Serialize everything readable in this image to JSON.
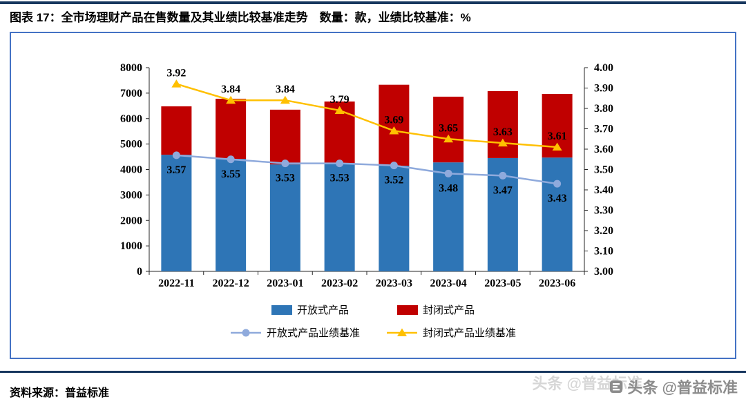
{
  "figure": {
    "caption": "图表 17：全市场理财产品在售数量及其业绩比较基准走势　数量：款，业绩比较基准：%"
  },
  "footer": {
    "source": "资料来源：普益标准",
    "watermark": "头条 @普益标准"
  },
  "colors": {
    "divider": "#17375E",
    "frame_border": "#4472C4",
    "axis": "#262626",
    "watermark": "#8C8C8C"
  },
  "chart_data": {
    "type": "bar",
    "subtype": "stacked-bars-with-secondary-axis-lines",
    "stacked": true,
    "grid": false,
    "legend_position": "bottom",
    "categories": [
      "2022-11",
      "2022-12",
      "2023-01",
      "2023-02",
      "2023-03",
      "2023-04",
      "2023-05",
      "2023-06"
    ],
    "bar_series": [
      {
        "name": "开放式产品",
        "axis": "left",
        "color": "#2E75B6",
        "values": [
          4580,
          4420,
          4200,
          4250,
          4150,
          4280,
          4450,
          4470
        ]
      },
      {
        "name": "封闭式产品",
        "axis": "left",
        "color": "#C00000",
        "values": [
          1900,
          2360,
          2150,
          2420,
          3180,
          2580,
          2630,
          2500
        ]
      }
    ],
    "line_series": [
      {
        "name": "开放式产品业绩基准",
        "axis": "right",
        "color": "#8FAADC",
        "marker": "circle",
        "label_position": "below",
        "values": [
          3.57,
          3.55,
          3.53,
          3.53,
          3.52,
          3.48,
          3.47,
          3.43
        ]
      },
      {
        "name": "封闭式产品业绩基准",
        "axis": "right",
        "color": "#FFC000",
        "marker": "triangle",
        "label_position": "above",
        "values": [
          3.92,
          3.84,
          3.84,
          3.79,
          3.69,
          3.65,
          3.63,
          3.61
        ]
      }
    ],
    "left_axis": {
      "min": 0,
      "max": 8000,
      "step": 1000
    },
    "right_axis": {
      "min": 3.0,
      "max": 4.0,
      "step": 0.1,
      "decimals": 2
    }
  }
}
